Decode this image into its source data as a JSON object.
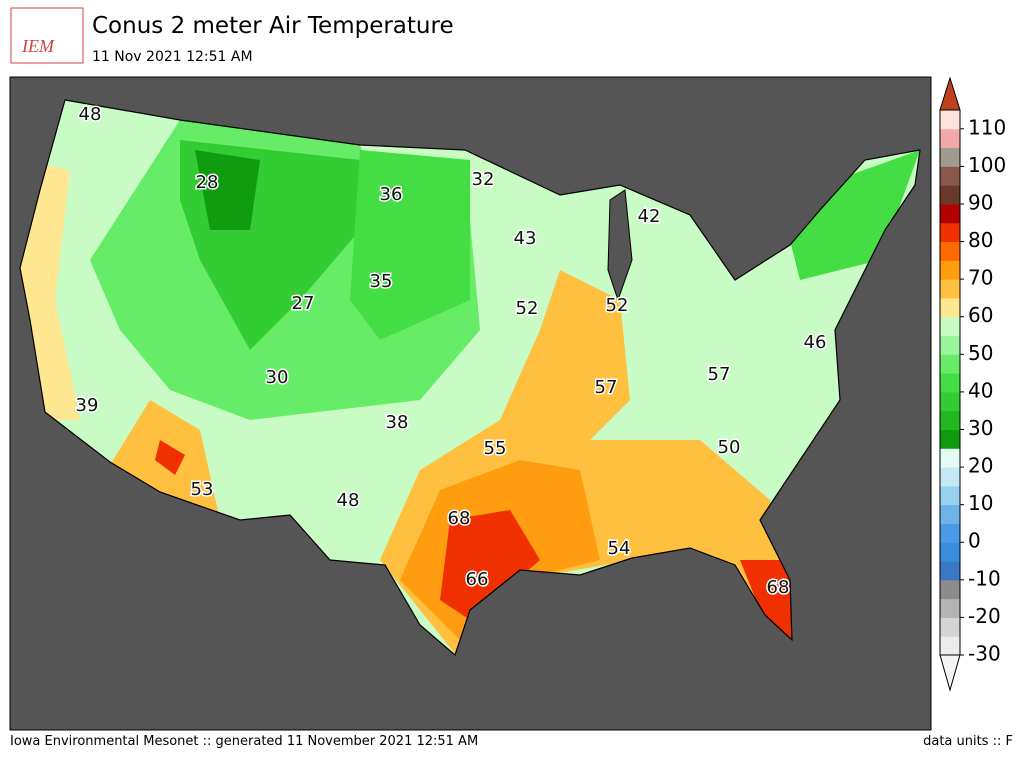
{
  "header": {
    "title": "Conus 2 meter Air Temperature",
    "subtitle": "11 Nov 2021 12:51 AM",
    "logo": "IEM"
  },
  "footer": {
    "left": "Iowa Environmental Mesonet :: generated 11 November 2021 12:51 AM",
    "right": "data units :: F"
  },
  "colorbar": {
    "lim": [
      -30,
      115
    ],
    "ticks": [
      -30,
      -20,
      -10,
      0,
      10,
      20,
      30,
      40,
      50,
      60,
      70,
      80,
      90,
      100,
      110
    ],
    "colors": [
      "#ececec",
      "#d4d4d4",
      "#b4b4b4",
      "#8c8c8c",
      "#3a78c4",
      "#3a8ee0",
      "#4a9ae8",
      "#6cb4e8",
      "#98d0f0",
      "#c4e8f4",
      "#e4fbf4",
      "#109c10",
      "#22b822",
      "#33cc33",
      "#44dd44",
      "#66ec66",
      "#9af49a",
      "#c8fcc4",
      "#ffe690",
      "#ffc040",
      "#ff9c10",
      "#ff6a00",
      "#f03000",
      "#b00000",
      "#6a3a28",
      "#8a5848",
      "#a09a90",
      "#f0a8a8",
      "#fce4dc"
    ],
    "over_color": "#c0401e",
    "under_color": "#f4f4f4"
  },
  "stations": [
    48,
    28,
    36,
    32,
    42,
    43,
    35,
    27,
    52,
    52,
    46,
    30,
    57,
    57,
    39,
    38,
    55,
    50,
    53,
    48,
    68,
    54,
    66,
    68
  ]
}
